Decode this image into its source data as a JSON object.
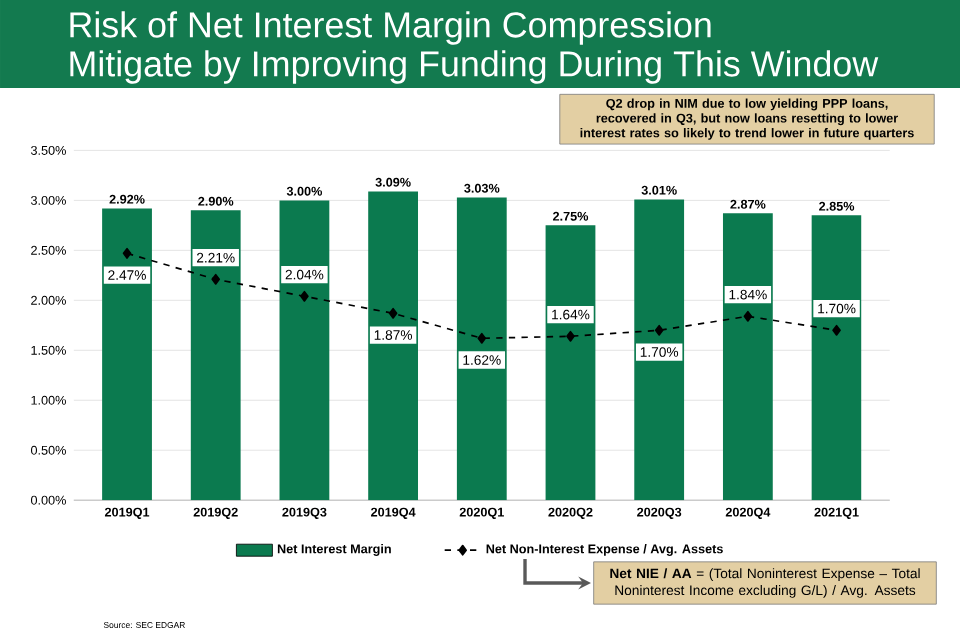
{
  "chart_data": {
    "type": "bar",
    "title": "Risk of Net Interest Margin Compression",
    "subtitle": "Mitigate by Improving Funding During This Window",
    "categories": [
      "2019Q1",
      "2019Q2",
      "2019Q3",
      "2019Q4",
      "2020Q1",
      "2020Q2",
      "2020Q3",
      "2020Q4",
      "2021Q1"
    ],
    "series": [
      {
        "name": "Net Interest Margin",
        "color": "#0b7a4f",
        "values": [
          2.92,
          2.9,
          3.0,
          3.09,
          3.03,
          2.75,
          3.01,
          2.87,
          2.85
        ],
        "value_labels": [
          "2.92%",
          "2.90%",
          "3.00%",
          "3.09%",
          "3.03%",
          "2.75%",
          "3.01%",
          "2.87%",
          "2.85%"
        ]
      },
      {
        "name": "Net Non-Interest Expense / Avg. Assets",
        "type": "line",
        "color": "#000000",
        "marker": "diamond",
        "line_style": "dashed",
        "values": [
          2.47,
          2.21,
          2.04,
          1.87,
          1.62,
          1.64,
          1.7,
          1.84,
          1.7
        ],
        "value_labels": [
          "2.47%",
          "2.21%",
          "2.04%",
          "1.87%",
          "1.62%",
          "1.64%",
          "1.70%",
          "1.84%",
          "1.70%"
        ]
      }
    ],
    "ylim": [
      0,
      3.5
    ],
    "yticks": [
      {
        "value": 0,
        "label": "0.00%"
      },
      {
        "value": 0.5,
        "label": "0.50%"
      },
      {
        "value": 1,
        "label": "1.00%"
      },
      {
        "value": 1.5,
        "label": "1.50%"
      },
      {
        "value": 2,
        "label": "2.00%"
      },
      {
        "value": 2.5,
        "label": "2.50%"
      },
      {
        "value": 3,
        "label": "3.00%"
      },
      {
        "value": 3.5,
        "label": "3.50%"
      }
    ],
    "grid": "y",
    "legend": "bottom",
    "annotations": [
      "**Q2 drop in NIM due to low yielding PPP loans, recovered in Q3, but now loans resetting to lower interest rates so likely to trend lower in future quarters**",
      "**Net NIE / AA** = (Total Noninterest Expense – Total Noninterest Income excluding G/L) / Avg. Assets",
      "Source: SEC EDGAR"
    ]
  }
}
